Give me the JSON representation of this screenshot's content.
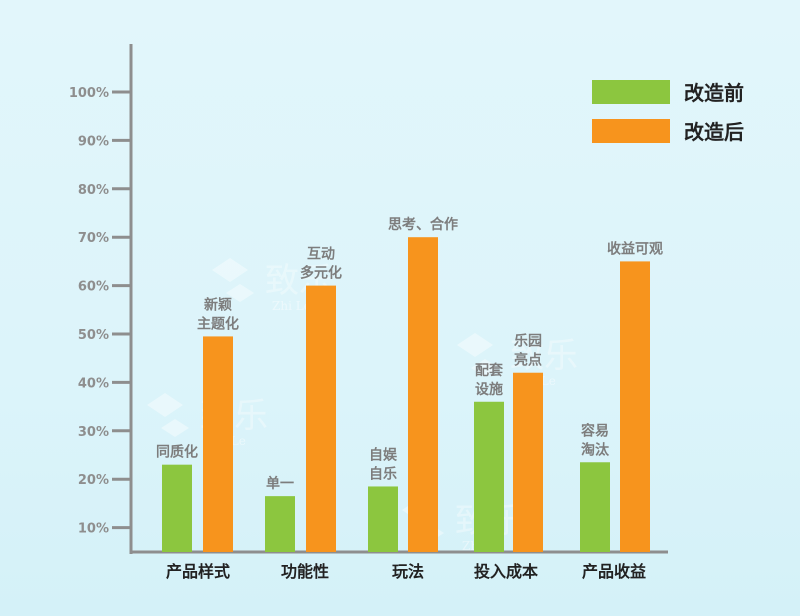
{
  "chart_data": {
    "type": "bar",
    "title": "",
    "xlabel": "",
    "ylabel": "",
    "categories": [
      "产品样式",
      "功能性",
      "玩法",
      "投入成本",
      "产品收益"
    ],
    "series": [
      {
        "name": "改造前",
        "color": "#8cc63f",
        "values": [
          23,
          16.5,
          18.5,
          36,
          23.5
        ],
        "annotations": [
          [
            "同质化"
          ],
          [
            "单一"
          ],
          [
            "自娱",
            "自乐"
          ],
          [
            "配套",
            "设施"
          ],
          [
            "容易",
            "淘汰"
          ]
        ]
      },
      {
        "name": "改造后",
        "color": "#f7941d",
        "values": [
          49.5,
          60,
          70,
          42,
          65
        ],
        "annotations": [
          [
            "新颖",
            "主题化"
          ],
          [
            "互动",
            "多元化"
          ],
          [
            "思考、合作"
          ],
          [
            "乐园",
            "亮点"
          ],
          [
            "收益可观"
          ]
        ]
      }
    ],
    "yticks": [
      "10%",
      "20%",
      "30%",
      "40%",
      "50%",
      "60%",
      "70%",
      "80%",
      "90%",
      "100%"
    ],
    "ylim": [
      5,
      110
    ],
    "grid": false,
    "legend_position": "top-right"
  },
  "watermark": {
    "text": "致乐",
    "latin": "Zhi Le"
  }
}
